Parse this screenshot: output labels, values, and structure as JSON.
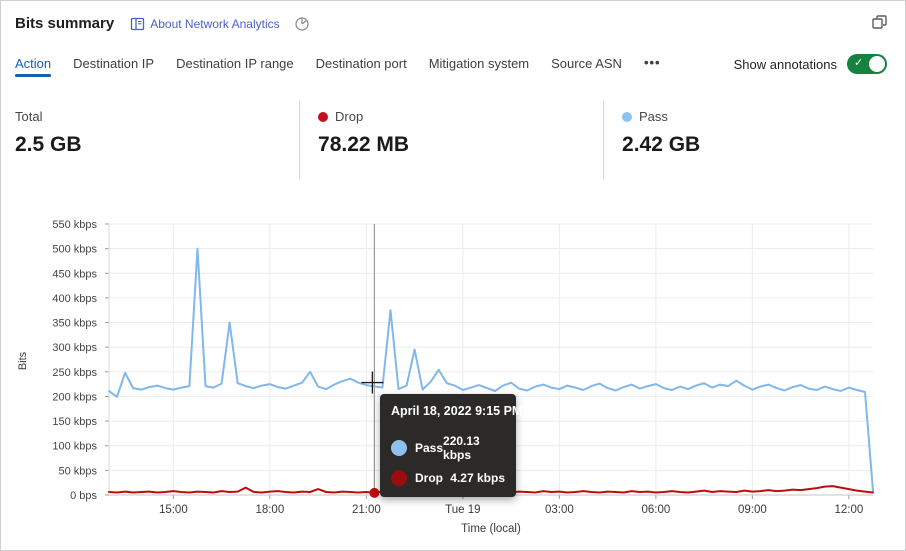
{
  "header": {
    "title": "Bits summary",
    "about_link": "About Network Analytics"
  },
  "tabs": {
    "items": [
      {
        "label": "Action",
        "active": true
      },
      {
        "label": "Destination IP",
        "active": false
      },
      {
        "label": "Destination IP range",
        "active": false
      },
      {
        "label": "Destination port",
        "active": false
      },
      {
        "label": "Mitigation system",
        "active": false
      },
      {
        "label": "Source ASN",
        "active": false
      }
    ],
    "more_label": "•••",
    "show_annotations_label": "Show annotations",
    "toggle_state": "on"
  },
  "stats": [
    {
      "label": "Total",
      "value": "2.5 GB",
      "dot": ""
    },
    {
      "label": "Drop",
      "value": "78.22 MB",
      "dot": "#c50f1f"
    },
    {
      "label": "Pass",
      "value": "2.42 GB",
      "dot": "#8dc2f0"
    }
  ],
  "tooltip": {
    "title": "April 18, 2022 9:15 PM",
    "rows": [
      {
        "name": "Pass",
        "value": "220.13 kbps",
        "color": "#8dc2f0"
      },
      {
        "name": "Drop",
        "value": "4.27 kbps",
        "color": "#9c0e0e"
      }
    ]
  },
  "chart_data": {
    "type": "line",
    "title": "Bits summary",
    "xlabel": "Time (local)",
    "ylabel": "Bits",
    "unit": "kbps",
    "ylim": [
      0,
      550
    ],
    "grid": true,
    "legend_position": "none",
    "y_tick_labels": [
      "0 bps",
      "50 kbps",
      "100 kbps",
      "150 kbps",
      "200 kbps",
      "250 kbps",
      "300 kbps",
      "350 kbps",
      "400 kbps",
      "450 kbps",
      "500 kbps",
      "550 kbps"
    ],
    "x": [
      "13:00",
      "13:15",
      "13:30",
      "13:45",
      "14:00",
      "14:15",
      "14:30",
      "14:45",
      "15:00",
      "15:15",
      "15:30",
      "15:45",
      "16:00",
      "16:15",
      "16:30",
      "16:45",
      "17:00",
      "17:15",
      "17:30",
      "17:45",
      "18:00",
      "18:15",
      "18:30",
      "18:45",
      "19:00",
      "19:15",
      "19:30",
      "19:45",
      "20:00",
      "20:15",
      "20:30",
      "20:45",
      "21:00",
      "21:15",
      "21:30",
      "21:45",
      "22:00",
      "22:15",
      "22:30",
      "22:45",
      "23:00",
      "23:15",
      "23:30",
      "23:45",
      "00:00",
      "00:15",
      "00:30",
      "00:45",
      "01:00",
      "01:15",
      "01:30",
      "01:45",
      "02:00",
      "02:15",
      "02:30",
      "02:45",
      "03:00",
      "03:15",
      "03:30",
      "03:45",
      "04:00",
      "04:15",
      "04:30",
      "04:45",
      "05:00",
      "05:15",
      "05:30",
      "05:45",
      "06:00",
      "06:15",
      "06:30",
      "06:45",
      "07:00",
      "07:15",
      "07:30",
      "07:45",
      "08:00",
      "08:15",
      "08:30",
      "08:45",
      "09:00",
      "09:15",
      "09:30",
      "09:45",
      "10:00",
      "10:15",
      "10:30",
      "10:45",
      "11:00",
      "11:15",
      "11:30",
      "11:45",
      "12:00",
      "12:15",
      "12:30",
      "12:45"
    ],
    "x_ticks": [
      {
        "i": 8,
        "label": "15:00"
      },
      {
        "i": 20,
        "label": "18:00"
      },
      {
        "i": 32,
        "label": "21:00"
      },
      {
        "i": 44,
        "label": "Tue 19"
      },
      {
        "i": 56,
        "label": "03:00"
      },
      {
        "i": 68,
        "label": "06:00"
      },
      {
        "i": 80,
        "label": "09:00"
      },
      {
        "i": 92,
        "label": "12:00"
      }
    ],
    "series": [
      {
        "name": "Pass",
        "color": "#82b7ec",
        "values": [
          211,
          199,
          248,
          217,
          214,
          219,
          222,
          217,
          214,
          218,
          221,
          500,
          221,
          218,
          226,
          350,
          227,
          221,
          217,
          222,
          225,
          219,
          216,
          222,
          228,
          250,
          220,
          215,
          224,
          231,
          236,
          228,
          223,
          220.13,
          218,
          375,
          215,
          222,
          295,
          214,
          230,
          254,
          227,
          222,
          213,
          218,
          223,
          217,
          211,
          222,
          228,
          216,
          212,
          220,
          224,
          218,
          215,
          222,
          218,
          213,
          221,
          226,
          217,
          212,
          219,
          224,
          216,
          221,
          225,
          217,
          213,
          220,
          215,
          222,
          227,
          218,
          224,
          221,
          232,
          222,
          214,
          220,
          224,
          217,
          212,
          219,
          223,
          216,
          213,
          220,
          215,
          211,
          218,
          213,
          209,
          8
        ]
      },
      {
        "name": "Drop",
        "color": "#bf0d0d",
        "values": [
          6,
          5,
          7,
          5,
          6,
          7,
          5,
          6,
          8,
          6,
          5,
          7,
          6,
          5,
          8,
          6,
          7,
          15,
          6,
          5,
          7,
          8,
          6,
          5,
          7,
          6,
          12,
          6,
          5,
          7,
          6,
          5,
          6,
          4.27,
          7,
          5,
          8,
          6,
          5,
          7,
          6,
          8,
          6,
          5,
          6,
          7,
          5,
          6,
          8,
          6,
          5,
          7,
          6,
          5,
          8,
          6,
          7,
          5,
          6,
          8,
          6,
          5,
          7,
          6,
          5,
          8,
          6,
          7,
          5,
          6,
          8,
          6,
          5,
          7,
          9,
          6,
          8,
          7,
          6,
          9,
          7,
          8,
          10,
          8,
          9,
          11,
          10,
          12,
          14,
          17,
          18,
          15,
          12,
          9,
          7,
          5
        ]
      }
    ],
    "hover": {
      "index": 33,
      "time": "April 18, 2022 9:15 PM",
      "pass_kbps": 220.13,
      "drop_kbps": 4.27
    }
  }
}
